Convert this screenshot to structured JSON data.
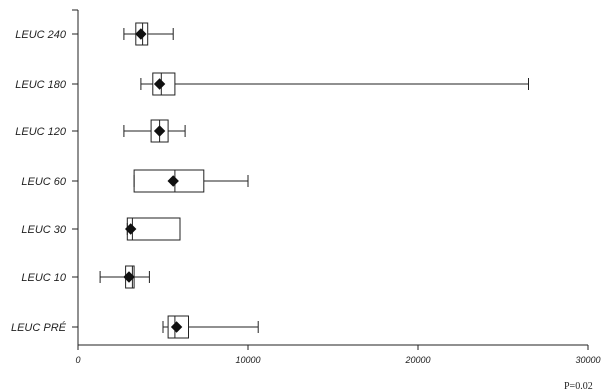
{
  "chart_data": {
    "type": "box",
    "categories": [
      "LEUC 240",
      "LEUC 180",
      "LEUC 120",
      "LEUC 60",
      "LEUC 30",
      "LEUC 10",
      "LEUC PRÉ"
    ],
    "boxes": [
      {
        "category": "LEUC 240",
        "whisker_low": 2700,
        "q1": 3400,
        "median": 3800,
        "q3": 4100,
        "whisker_high": 5600,
        "mean": 3700
      },
      {
        "category": "LEUC 180",
        "whisker_low": 3700,
        "q1": 4400,
        "median": 4900,
        "q3": 5700,
        "whisker_high": 26500,
        "mean": 4800
      },
      {
        "category": "LEUC 120",
        "whisker_low": 2700,
        "q1": 4300,
        "median": 4800,
        "q3": 5300,
        "whisker_high": 6300,
        "mean": 4800
      },
      {
        "category": "LEUC 60",
        "whisker_low": 3300,
        "q1": 3300,
        "median": 5700,
        "q3": 7400,
        "whisker_high": 10000,
        "mean": 5600
      },
      {
        "category": "LEUC 30",
        "whisker_low": 2900,
        "q1": 2900,
        "median": 3200,
        "q3": 6000,
        "whisker_high": 6000,
        "mean": 3100
      },
      {
        "category": "LEUC 10",
        "whisker_low": 1300,
        "q1": 2800,
        "median": 3200,
        "q3": 3300,
        "whisker_high": 4200,
        "mean": 3000
      },
      {
        "category": "LEUC PRÉ",
        "whisker_low": 5000,
        "q1": 5300,
        "median": 5700,
        "q3": 6500,
        "whisker_high": 10600,
        "mean": 5800
      }
    ],
    "x_ticks": [
      "0",
      "10000",
      "20000",
      "30000"
    ],
    "xlim": [
      0,
      30000
    ],
    "orientation": "horizontal",
    "grid": false,
    "title": "",
    "xlabel": "",
    "ylabel": ""
  },
  "annotation": "P=0.02"
}
